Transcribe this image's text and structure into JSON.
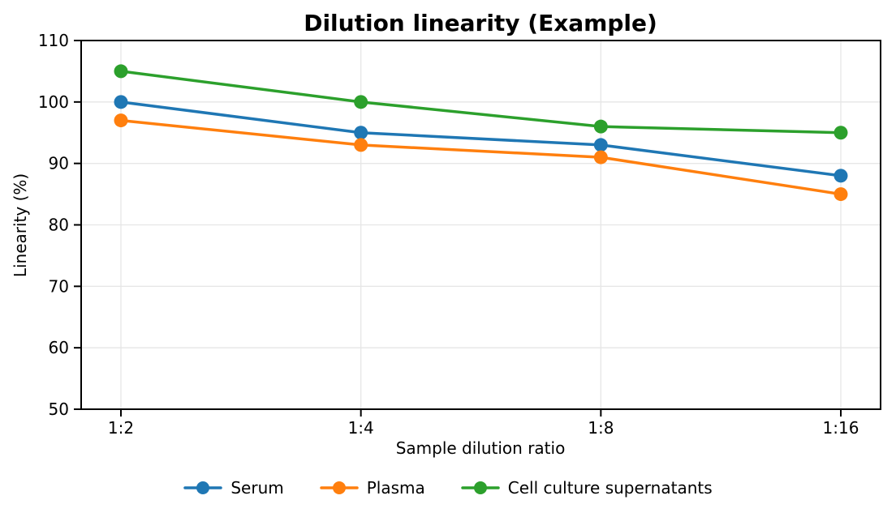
{
  "chart_data": {
    "type": "line",
    "title": "Dilution linearity (Example)",
    "xlabel": "Sample dilution ratio",
    "ylabel": "Linearity (%)",
    "categories": [
      "1:2",
      "1:4",
      "1:8",
      "1:16"
    ],
    "series": [
      {
        "name": "Serum",
        "color": "#1f77b4",
        "values": [
          100,
          95,
          93,
          88
        ]
      },
      {
        "name": "Plasma",
        "color": "#ff7f0e",
        "values": [
          97,
          93,
          91,
          85
        ]
      },
      {
        "name": "Cell culture supernatants",
        "color": "#2ca02c",
        "values": [
          105,
          100,
          96,
          95
        ]
      }
    ],
    "ylim": [
      50,
      110
    ],
    "yticks": [
      50,
      60,
      70,
      80,
      90,
      100,
      110
    ],
    "grid": true,
    "grid_color": "#e6e6e6",
    "axis_color": "#000000",
    "legend_position": "bottom"
  }
}
